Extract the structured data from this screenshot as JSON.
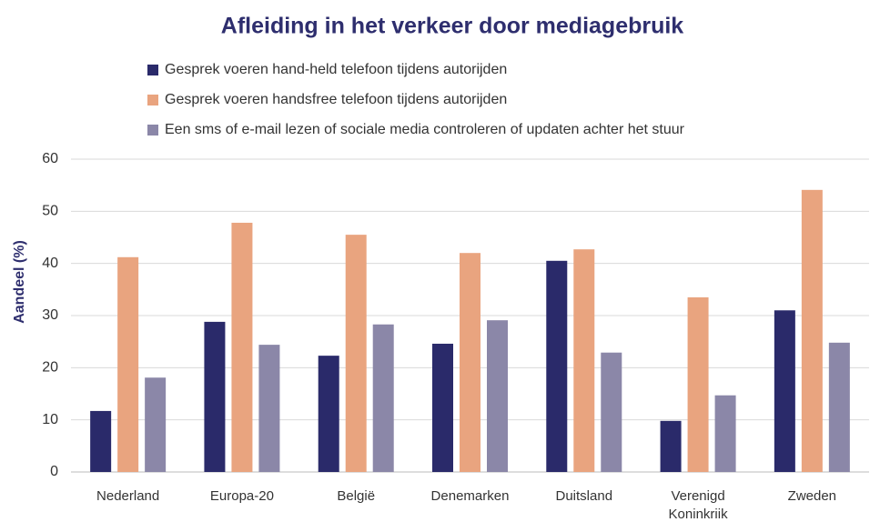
{
  "chart_data": {
    "type": "bar",
    "title": "Afleiding in het verkeer door mediagebruik",
    "ylabel": "Aandeel (%)",
    "categories": [
      "Nederland",
      "Europa-20",
      "België",
      "Denemarken",
      "Duitsland",
      "Verenigd Koninkriik",
      "Zweden"
    ],
    "series": [
      {
        "name": "Gesprek voeren hand-held telefoon tijdens autorijden",
        "color": "#2a2a6a",
        "values": [
          11.7,
          28.8,
          22.3,
          24.6,
          40.5,
          9.8,
          31.0
        ]
      },
      {
        "name": "Gesprek voeren handsfree telefoon tijdens autorijden",
        "color": "#e9a47f",
        "values": [
          41.2,
          47.8,
          45.5,
          42.0,
          42.7,
          33.5,
          54.1
        ]
      },
      {
        "name": "Een sms of e-mail lezen of sociale media controleren of updaten achter het stuur",
        "color": "#8b87a8",
        "values": [
          18.1,
          24.4,
          28.3,
          29.1,
          22.9,
          14.7,
          24.8
        ]
      }
    ],
    "ylim": [
      0,
      60
    ],
    "yticks": [
      0,
      10,
      20,
      30,
      40,
      50,
      60
    ],
    "grid": true
  }
}
